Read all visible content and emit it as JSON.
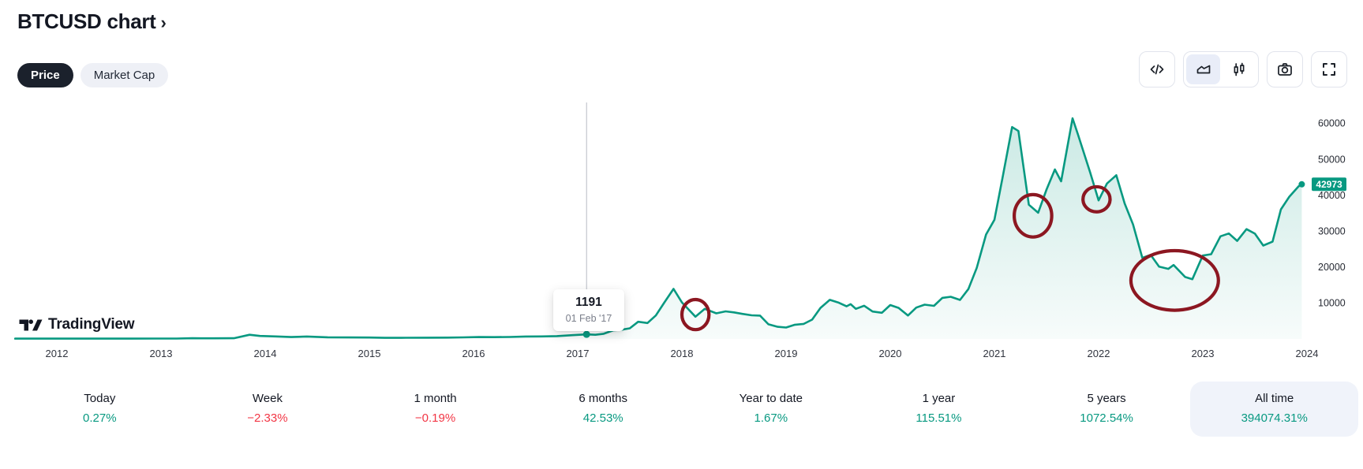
{
  "header": {
    "title": "BTCUSD chart",
    "chevron": "›"
  },
  "view_toggle": {
    "price": "Price",
    "market_cap": "Market Cap"
  },
  "toolbar": {
    "buttons": [
      {
        "icon": "code-icon",
        "selected": false
      },
      {
        "icon": "area-chart-icon",
        "selected": true
      },
      {
        "icon": "candlestick-icon",
        "selected": false
      },
      {
        "icon": "camera-icon",
        "selected": false
      },
      {
        "icon": "fullscreen-icon",
        "selected": false
      }
    ]
  },
  "watermark": {
    "brand": "TradingView"
  },
  "chart": {
    "price_badge": "42973",
    "tooltip": {
      "value": "1191",
      "date": "01 Feb '17"
    },
    "colors": {
      "line": "#089981",
      "badge": "#089981",
      "annotation": "#8c1721",
      "crosshair": "#b8bcc5",
      "up": "#089981",
      "down": "#f23645"
    }
  },
  "chart_data": {
    "type": "area",
    "title": "BTCUSD price history",
    "x_ticks": [
      "2012",
      "2013",
      "2014",
      "2015",
      "2016",
      "2017",
      "2018",
      "2019",
      "2020",
      "2021",
      "2022",
      "2023",
      "2024"
    ],
    "y_ticks": [
      10000,
      20000,
      30000,
      40000,
      50000,
      60000
    ],
    "xlim": [
      2011.6,
      2024.55
    ],
    "ylim": [
      0,
      63000
    ],
    "grid": false,
    "last_price": 42973,
    "crosshair": {
      "x": 2017.085,
      "price": 1191,
      "label": "1191",
      "date": "01 Feb '17"
    },
    "series": [
      {
        "name": "BTCUSD",
        "points": [
          [
            2011.6,
            4
          ],
          [
            2012.0,
            5
          ],
          [
            2012.35,
            6
          ],
          [
            2012.7,
            9
          ],
          [
            2012.95,
            13
          ],
          [
            2013.15,
            30
          ],
          [
            2013.3,
            100
          ],
          [
            2013.5,
            95
          ],
          [
            2013.7,
            115
          ],
          [
            2013.85,
            1080
          ],
          [
            2013.95,
            740
          ],
          [
            2014.1,
            620
          ],
          [
            2014.25,
            445
          ],
          [
            2014.4,
            585
          ],
          [
            2014.6,
            375
          ],
          [
            2014.8,
            340
          ],
          [
            2015.0,
            310
          ],
          [
            2015.15,
            225
          ],
          [
            2015.35,
            245
          ],
          [
            2015.55,
            265
          ],
          [
            2015.75,
            285
          ],
          [
            2015.9,
            360
          ],
          [
            2016.05,
            432
          ],
          [
            2016.2,
            418
          ],
          [
            2016.35,
            455
          ],
          [
            2016.5,
            585
          ],
          [
            2016.65,
            610
          ],
          [
            2016.8,
            700
          ],
          [
            2016.95,
            960
          ],
          [
            2017.085,
            1191
          ],
          [
            2017.17,
            1080
          ],
          [
            2017.25,
            1350
          ],
          [
            2017.34,
            2300
          ],
          [
            2017.42,
            2480
          ],
          [
            2017.5,
            2870
          ],
          [
            2017.58,
            4700
          ],
          [
            2017.67,
            4340
          ],
          [
            2017.75,
            6450
          ],
          [
            2017.83,
            10000
          ],
          [
            2017.92,
            13850
          ],
          [
            2018.0,
            10100
          ],
          [
            2018.13,
            6100
          ],
          [
            2018.22,
            8300
          ],
          [
            2018.33,
            7050
          ],
          [
            2018.42,
            7600
          ],
          [
            2018.5,
            7300
          ],
          [
            2018.58,
            6900
          ],
          [
            2018.67,
            6500
          ],
          [
            2018.75,
            6400
          ],
          [
            2018.83,
            4000
          ],
          [
            2018.92,
            3300
          ],
          [
            2019.0,
            3100
          ],
          [
            2019.08,
            3850
          ],
          [
            2019.17,
            4100
          ],
          [
            2019.25,
            5300
          ],
          [
            2019.33,
            8550
          ],
          [
            2019.42,
            10800
          ],
          [
            2019.5,
            10080
          ],
          [
            2019.58,
            9000
          ],
          [
            2019.62,
            9600
          ],
          [
            2019.67,
            8300
          ],
          [
            2019.75,
            9150
          ],
          [
            2019.83,
            7550
          ],
          [
            2019.92,
            7200
          ],
          [
            2020.0,
            9350
          ],
          [
            2020.08,
            8550
          ],
          [
            2020.17,
            6440
          ],
          [
            2020.25,
            8640
          ],
          [
            2020.33,
            9450
          ],
          [
            2020.42,
            9140
          ],
          [
            2020.5,
            11350
          ],
          [
            2020.58,
            11650
          ],
          [
            2020.67,
            10780
          ],
          [
            2020.75,
            13800
          ],
          [
            2020.83,
            19700
          ],
          [
            2020.92,
            29000
          ],
          [
            2021.0,
            33100
          ],
          [
            2021.08,
            45200
          ],
          [
            2021.17,
            58900
          ],
          [
            2021.23,
            57800
          ],
          [
            2021.33,
            37300
          ],
          [
            2021.42,
            35050
          ],
          [
            2021.5,
            41500
          ],
          [
            2021.58,
            47100
          ],
          [
            2021.64,
            43800
          ],
          [
            2021.75,
            61350
          ],
          [
            2021.8,
            57000
          ],
          [
            2021.92,
            46200
          ],
          [
            2022.0,
            38500
          ],
          [
            2022.08,
            43200
          ],
          [
            2022.17,
            45500
          ],
          [
            2022.25,
            37650
          ],
          [
            2022.33,
            31800
          ],
          [
            2022.42,
            22500
          ],
          [
            2022.5,
            23300
          ],
          [
            2022.58,
            20050
          ],
          [
            2022.67,
            19430
          ],
          [
            2022.72,
            20500
          ],
          [
            2022.83,
            17170
          ],
          [
            2022.9,
            16550
          ],
          [
            2023.0,
            23130
          ],
          [
            2023.08,
            23500
          ],
          [
            2023.17,
            28480
          ],
          [
            2023.25,
            29270
          ],
          [
            2023.33,
            27220
          ],
          [
            2023.42,
            30480
          ],
          [
            2023.5,
            29230
          ],
          [
            2023.58,
            25930
          ],
          [
            2023.67,
            27000
          ],
          [
            2023.75,
            36000
          ],
          [
            2023.83,
            39500
          ],
          [
            2023.92,
            42400
          ],
          [
            2023.95,
            42973
          ]
        ]
      }
    ],
    "annotations": {
      "ellipses": [
        {
          "cx": 2018.13,
          "cy": 6700,
          "rx_years": 0.13,
          "ry_price": 4200
        },
        {
          "cx": 2021.37,
          "cy": 34200,
          "rx_years": 0.18,
          "ry_price": 5900
        },
        {
          "cx": 2021.98,
          "cy": 38800,
          "rx_years": 0.13,
          "ry_price": 3500
        },
        {
          "cx": 2022.73,
          "cy": 16200,
          "rx_years": 0.42,
          "ry_price": 8300
        }
      ]
    }
  },
  "stats": [
    {
      "label": "Today",
      "value": "0.27%",
      "trend": "up",
      "selected": false
    },
    {
      "label": "Week",
      "value": "−2.33%",
      "trend": "down",
      "selected": false
    },
    {
      "label": "1 month",
      "value": "−0.19%",
      "trend": "down",
      "selected": false
    },
    {
      "label": "6 months",
      "value": "42.53%",
      "trend": "up",
      "selected": false
    },
    {
      "label": "Year to date",
      "value": "1.67%",
      "trend": "up",
      "selected": false
    },
    {
      "label": "1 year",
      "value": "115.51%",
      "trend": "up",
      "selected": false
    },
    {
      "label": "5 years",
      "value": "1072.54%",
      "trend": "up",
      "selected": false
    },
    {
      "label": "All time",
      "value": "394074.31%",
      "trend": "up",
      "selected": true
    }
  ]
}
